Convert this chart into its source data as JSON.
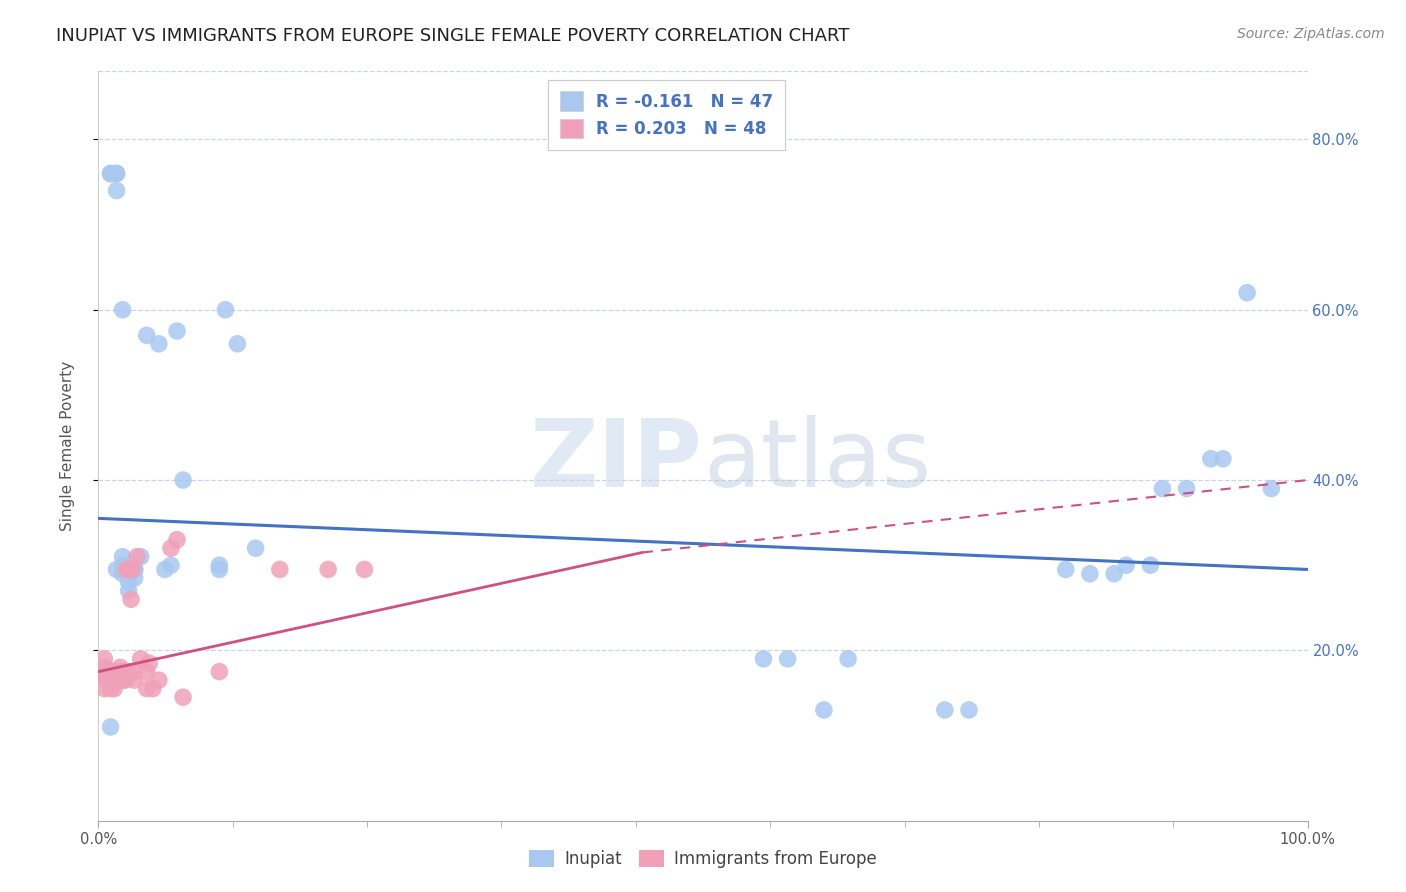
{
  "title": "INUPIAT VS IMMIGRANTS FROM EUROPE SINGLE FEMALE POVERTY CORRELATION CHART",
  "source": "Source: ZipAtlas.com",
  "ylabel": "Single Female Poverty",
  "legend_inupiat": "Inupiat",
  "legend_europe": "Immigrants from Europe",
  "r_inupiat": -0.161,
  "n_inupiat": 47,
  "r_europe": 0.203,
  "n_europe": 48,
  "inupiat_color": "#a8c8f0",
  "europe_color": "#f0a0b8",
  "trend_inupiat_color": "#4472c4",
  "trend_europe_color": "#d05080",
  "background_color": "#ffffff",
  "grid_color": "#c8d4e8",
  "watermark_color": "#dce8f4",
  "inupiat_x": [
    0.01,
    0.01,
    0.015,
    0.015,
    0.015,
    0.02,
    0.02,
    0.02,
    0.02,
    0.025,
    0.025,
    0.03,
    0.03,
    0.035,
    0.04,
    0.05,
    0.055,
    0.06,
    0.065,
    0.07,
    0.1,
    0.1,
    0.105,
    0.115,
    0.13,
    0.55,
    0.57,
    0.6,
    0.62,
    0.7,
    0.72,
    0.8,
    0.82,
    0.84,
    0.85,
    0.87,
    0.88,
    0.9,
    0.92,
    0.93,
    0.95,
    0.97,
    0.01,
    0.015,
    0.02,
    0.025,
    0.03
  ],
  "inupiat_y": [
    0.76,
    0.76,
    0.76,
    0.76,
    0.74,
    0.6,
    0.31,
    0.3,
    0.29,
    0.28,
    0.27,
    0.295,
    0.285,
    0.31,
    0.57,
    0.56,
    0.295,
    0.3,
    0.575,
    0.4,
    0.3,
    0.295,
    0.6,
    0.56,
    0.32,
    0.19,
    0.19,
    0.13,
    0.19,
    0.13,
    0.13,
    0.295,
    0.29,
    0.29,
    0.3,
    0.3,
    0.39,
    0.39,
    0.425,
    0.425,
    0.62,
    0.39,
    0.11,
    0.295,
    0.295,
    0.295,
    0.295
  ],
  "europe_x": [
    0.005,
    0.005,
    0.005,
    0.005,
    0.005,
    0.007,
    0.008,
    0.009,
    0.01,
    0.01,
    0.01,
    0.012,
    0.013,
    0.013,
    0.014,
    0.015,
    0.015,
    0.016,
    0.016,
    0.017,
    0.018,
    0.018,
    0.019,
    0.02,
    0.02,
    0.021,
    0.022,
    0.023,
    0.025,
    0.025,
    0.027,
    0.028,
    0.03,
    0.03,
    0.032,
    0.035,
    0.04,
    0.04,
    0.042,
    0.045,
    0.05,
    0.06,
    0.065,
    0.07,
    0.1,
    0.15,
    0.19,
    0.22
  ],
  "europe_y": [
    0.155,
    0.17,
    0.175,
    0.18,
    0.19,
    0.165,
    0.175,
    0.165,
    0.155,
    0.165,
    0.175,
    0.175,
    0.155,
    0.165,
    0.165,
    0.17,
    0.175,
    0.165,
    0.175,
    0.165,
    0.175,
    0.18,
    0.165,
    0.165,
    0.175,
    0.175,
    0.165,
    0.295,
    0.175,
    0.295,
    0.26,
    0.295,
    0.165,
    0.175,
    0.31,
    0.19,
    0.155,
    0.175,
    0.185,
    0.155,
    0.165,
    0.32,
    0.33,
    0.145,
    0.175,
    0.295,
    0.295,
    0.295
  ],
  "trend_inupiat_x0": 0.0,
  "trend_inupiat_y0": 0.355,
  "trend_inupiat_x1": 1.0,
  "trend_inupiat_y1": 0.295,
  "trend_europe_x0": 0.0,
  "trend_europe_y0": 0.175,
  "trend_europe_x1": 0.45,
  "trend_europe_y1": 0.315,
  "trend_europe_dash_x0": 0.45,
  "trend_europe_dash_y0": 0.315,
  "trend_europe_dash_x1": 1.0,
  "trend_europe_dash_y1": 0.4,
  "xlim_min": 0.0,
  "xlim_max": 1.0,
  "ylim_min": 0.0,
  "ylim_max": 0.88,
  "ytick_vals": [
    0.2,
    0.4,
    0.6,
    0.8
  ],
  "ytick_labels": [
    "20.0%",
    "40.0%",
    "60.0%",
    "80.0%"
  ],
  "title_fontsize": 13,
  "axis_label_fontsize": 11,
  "tick_fontsize": 10.5,
  "legend_fontsize": 12,
  "source_fontsize": 10
}
